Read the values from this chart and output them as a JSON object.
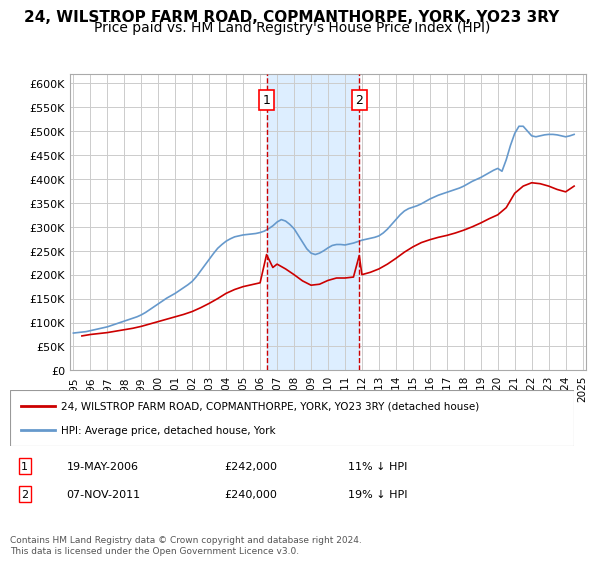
{
  "title": "24, WILSTROP FARM ROAD, COPMANTHORPE, YORK, YO23 3RY",
  "subtitle": "Price paid vs. HM Land Registry's House Price Index (HPI)",
  "xlabel": "",
  "ylabel": "",
  "ylim": [
    0,
    620000
  ],
  "yticks": [
    0,
    50000,
    100000,
    150000,
    200000,
    250000,
    300000,
    350000,
    400000,
    450000,
    500000,
    550000,
    600000
  ],
  "ytick_labels": [
    "£0",
    "£50K",
    "£100K",
    "£150K",
    "£200K",
    "£250K",
    "£300K",
    "£350K",
    "£400K",
    "£450K",
    "£500K",
    "£550K",
    "£600K"
  ],
  "sale1_date": 2006.38,
  "sale1_label": "1",
  "sale1_price": 242000,
  "sale1_display": "19-MAY-2006",
  "sale1_pct": "11% ↓ HPI",
  "sale2_date": 2011.84,
  "sale2_label": "2",
  "sale2_price": 240000,
  "sale2_display": "07-NOV-2011",
  "sale2_pct": "19% ↓ HPI",
  "line1_color": "#cc0000",
  "line2_color": "#6699cc",
  "shade_color": "#ddeeff",
  "grid_color": "#cccccc",
  "background_color": "#ffffff",
  "legend1_label": "24, WILSTROP FARM ROAD, COPMANTHORPE, YORK, YO23 3RY (detached house)",
  "legend2_label": "HPI: Average price, detached house, York",
  "footnote": "Contains HM Land Registry data © Crown copyright and database right 2024.\nThis data is licensed under the Open Government Licence v3.0.",
  "title_fontsize": 11,
  "subtitle_fontsize": 10,
  "hpi_x": [
    1995.0,
    1995.25,
    1995.5,
    1995.75,
    1996.0,
    1996.25,
    1996.5,
    1996.75,
    1997.0,
    1997.25,
    1997.5,
    1997.75,
    1998.0,
    1998.25,
    1998.5,
    1998.75,
    1999.0,
    1999.25,
    1999.5,
    1999.75,
    2000.0,
    2000.25,
    2000.5,
    2000.75,
    2001.0,
    2001.25,
    2001.5,
    2001.75,
    2002.0,
    2002.25,
    2002.5,
    2002.75,
    2003.0,
    2003.25,
    2003.5,
    2003.75,
    2004.0,
    2004.25,
    2004.5,
    2004.75,
    2005.0,
    2005.25,
    2005.5,
    2005.75,
    2006.0,
    2006.25,
    2006.5,
    2006.75,
    2007.0,
    2007.25,
    2007.5,
    2007.75,
    2008.0,
    2008.25,
    2008.5,
    2008.75,
    2009.0,
    2009.25,
    2009.5,
    2009.75,
    2010.0,
    2010.25,
    2010.5,
    2010.75,
    2011.0,
    2011.25,
    2011.5,
    2011.75,
    2012.0,
    2012.25,
    2012.5,
    2012.75,
    2013.0,
    2013.25,
    2013.5,
    2013.75,
    2014.0,
    2014.25,
    2014.5,
    2014.75,
    2015.0,
    2015.25,
    2015.5,
    2015.75,
    2016.0,
    2016.25,
    2016.5,
    2016.75,
    2017.0,
    2017.25,
    2017.5,
    2017.75,
    2018.0,
    2018.25,
    2018.5,
    2018.75,
    2019.0,
    2019.25,
    2019.5,
    2019.75,
    2020.0,
    2020.25,
    2020.5,
    2020.75,
    2021.0,
    2021.25,
    2021.5,
    2021.75,
    2022.0,
    2022.25,
    2022.5,
    2022.75,
    2023.0,
    2023.25,
    2023.5,
    2023.75,
    2024.0,
    2024.25,
    2024.5
  ],
  "hpi_y": [
    78000,
    79000,
    80000,
    81000,
    83000,
    85000,
    87000,
    89000,
    91000,
    94000,
    97000,
    100000,
    103000,
    106000,
    109000,
    112000,
    116000,
    121000,
    127000,
    133000,
    139000,
    145000,
    151000,
    156000,
    161000,
    167000,
    173000,
    179000,
    186000,
    196000,
    208000,
    220000,
    232000,
    244000,
    255000,
    263000,
    270000,
    275000,
    279000,
    281000,
    283000,
    284000,
    285000,
    286000,
    288000,
    291000,
    296000,
    302000,
    310000,
    315000,
    312000,
    305000,
    296000,
    282000,
    268000,
    254000,
    245000,
    242000,
    245000,
    250000,
    256000,
    261000,
    263000,
    263000,
    262000,
    264000,
    266000,
    269000,
    272000,
    274000,
    276000,
    278000,
    281000,
    287000,
    295000,
    305000,
    315000,
    325000,
    333000,
    338000,
    341000,
    344000,
    348000,
    353000,
    358000,
    362000,
    366000,
    369000,
    372000,
    375000,
    378000,
    381000,
    385000,
    390000,
    395000,
    399000,
    403000,
    408000,
    413000,
    418000,
    422000,
    416000,
    440000,
    470000,
    495000,
    510000,
    510000,
    500000,
    490000,
    488000,
    490000,
    492000,
    493000,
    493000,
    492000,
    490000,
    488000,
    490000,
    493000
  ],
  "prop_x": [
    1995.5,
    1996.0,
    1996.5,
    1997.0,
    1997.5,
    1998.0,
    1998.5,
    1999.0,
    1999.5,
    2000.0,
    2000.5,
    2001.0,
    2001.5,
    2002.0,
    2002.5,
    2003.0,
    2003.5,
    2004.0,
    2004.5,
    2005.0,
    2005.5,
    2006.0,
    2006.38,
    2006.75,
    2007.0,
    2007.5,
    2008.0,
    2008.5,
    2009.0,
    2009.5,
    2010.0,
    2010.5,
    2011.0,
    2011.5,
    2011.84,
    2012.0,
    2012.5,
    2013.0,
    2013.5,
    2014.0,
    2014.5,
    2015.0,
    2015.5,
    2016.0,
    2016.5,
    2017.0,
    2017.5,
    2018.0,
    2018.5,
    2019.0,
    2019.5,
    2020.0,
    2020.5,
    2021.0,
    2021.5,
    2022.0,
    2022.5,
    2023.0,
    2023.5,
    2024.0,
    2024.5
  ],
  "prop_y": [
    72000,
    75000,
    77000,
    79000,
    82000,
    85000,
    88000,
    92000,
    97000,
    102000,
    107000,
    112000,
    117000,
    123000,
    131000,
    140000,
    150000,
    161000,
    169000,
    175000,
    179000,
    183000,
    242000,
    215000,
    222000,
    212000,
    200000,
    187000,
    178000,
    180000,
    188000,
    193000,
    193000,
    195000,
    240000,
    200000,
    205000,
    212000,
    222000,
    234000,
    247000,
    258000,
    267000,
    273000,
    278000,
    282000,
    287000,
    293000,
    300000,
    308000,
    317000,
    325000,
    340000,
    370000,
    385000,
    392000,
    390000,
    385000,
    378000,
    373000,
    385000
  ]
}
